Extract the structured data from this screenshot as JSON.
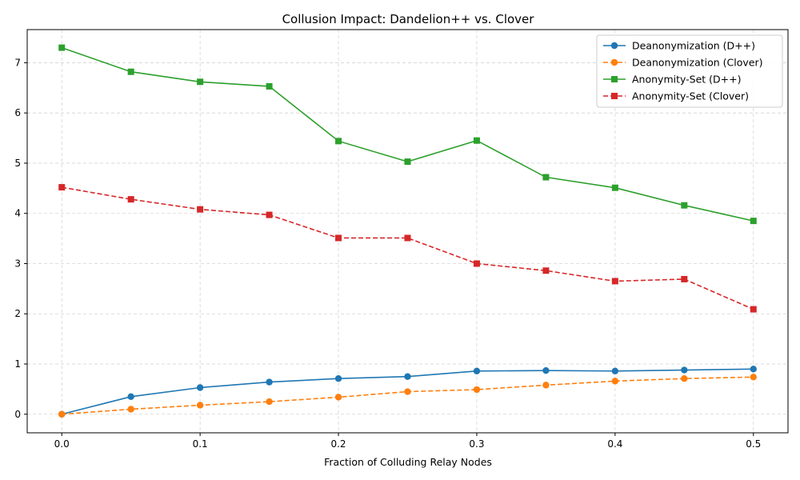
{
  "chart_data": {
    "type": "line",
    "title": "Collusion Impact: Dandelion++ vs. Clover",
    "xlabel": "Fraction of Colluding Relay Nodes",
    "ylabel": "",
    "x": [
      0.0,
      0.05,
      0.1,
      0.15,
      0.2,
      0.25,
      0.3,
      0.35,
      0.4,
      0.45,
      0.5
    ],
    "xlim": [
      -0.025,
      0.525
    ],
    "ylim": [
      -0.37,
      7.66
    ],
    "xticks": [
      0.0,
      0.1,
      0.2,
      0.3,
      0.4,
      0.5
    ],
    "xtick_labels": [
      "0.0",
      "0.1",
      "0.2",
      "0.3",
      "0.4",
      "0.5"
    ],
    "yticks": [
      0,
      1,
      2,
      3,
      4,
      5,
      6,
      7
    ],
    "ytick_labels": [
      "0",
      "1",
      "2",
      "3",
      "4",
      "5",
      "6",
      "7"
    ],
    "grid": true,
    "legend_position": "top-right",
    "series": [
      {
        "name": "Deanonymization (D++)",
        "color": "#1f77b4",
        "linestyle": "solid",
        "marker": "circle",
        "values": [
          0.0,
          0.35,
          0.53,
          0.64,
          0.71,
          0.75,
          0.86,
          0.87,
          0.86,
          0.88,
          0.9
        ]
      },
      {
        "name": "Deanonymization (Clover)",
        "color": "#ff7f0e",
        "linestyle": "dashed",
        "marker": "circle",
        "values": [
          0.0,
          0.1,
          0.18,
          0.25,
          0.34,
          0.45,
          0.49,
          0.58,
          0.66,
          0.71,
          0.74
        ]
      },
      {
        "name": "Anonymity-Set (D++)",
        "color": "#2ca02c",
        "linestyle": "solid",
        "marker": "square",
        "values": [
          7.3,
          6.82,
          6.62,
          6.53,
          5.44,
          5.03,
          5.45,
          4.72,
          4.51,
          4.16,
          3.85
        ]
      },
      {
        "name": "Anonymity-Set (Clover)",
        "color": "#d62728",
        "linestyle": "dashed",
        "marker": "square",
        "values": [
          4.52,
          4.28,
          4.08,
          3.97,
          3.51,
          3.51,
          3.0,
          2.86,
          2.65,
          2.69,
          2.09
        ]
      }
    ]
  }
}
